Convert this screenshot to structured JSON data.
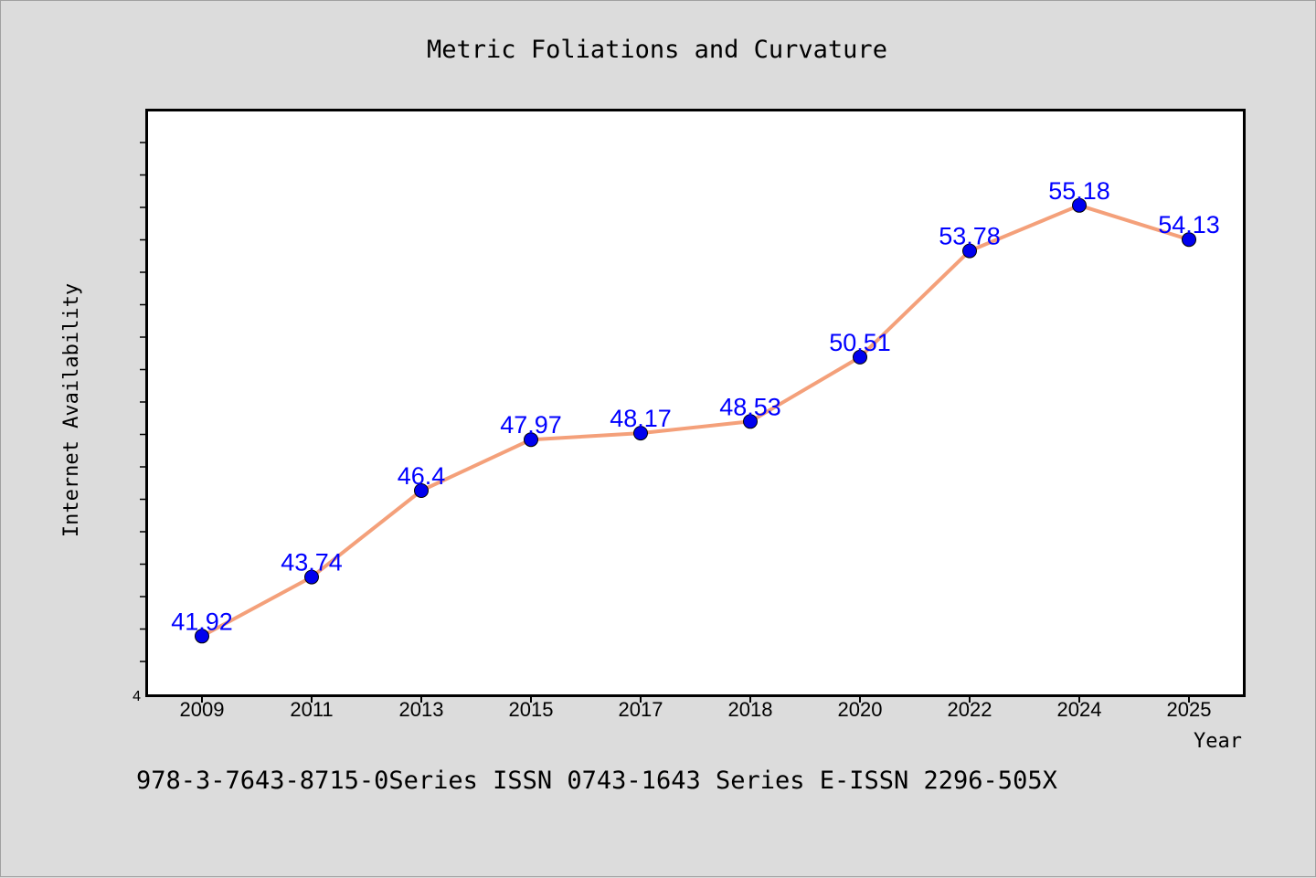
{
  "chart_data": {
    "type": "line",
    "title": "Metric Foliations and Curvature",
    "xlabel": "Year",
    "ylabel": "Internet Availability",
    "categories": [
      "2009",
      "2011",
      "2013",
      "2015",
      "2017",
      "2018",
      "2020",
      "2022",
      "2024",
      "2025"
    ],
    "series": [
      {
        "values": [
          41.92,
          43.74,
          46.4,
          47.97,
          48.17,
          48.53,
          50.51,
          53.78,
          55.18,
          54.13
        ],
        "labels": [
          "41.92",
          "43.74",
          "46.4",
          "47.97",
          "48.17",
          "48.53",
          "50.51",
          "53.78",
          "55.18",
          "54.13"
        ],
        "line_color": "#f4a07a",
        "marker_color": "#0000ee"
      }
    ],
    "ylim": [
      40.1,
      58.1
    ],
    "y_tick_label": "4",
    "grid": false,
    "legend": "none"
  },
  "footer": "978-3-7643-8715-0Series ISSN 0743-1643 Series E-ISSN 2296-505X",
  "colors": {
    "background": "#dcdcdc",
    "plot_background": "#ffffff",
    "label_color": "#0000ff"
  }
}
